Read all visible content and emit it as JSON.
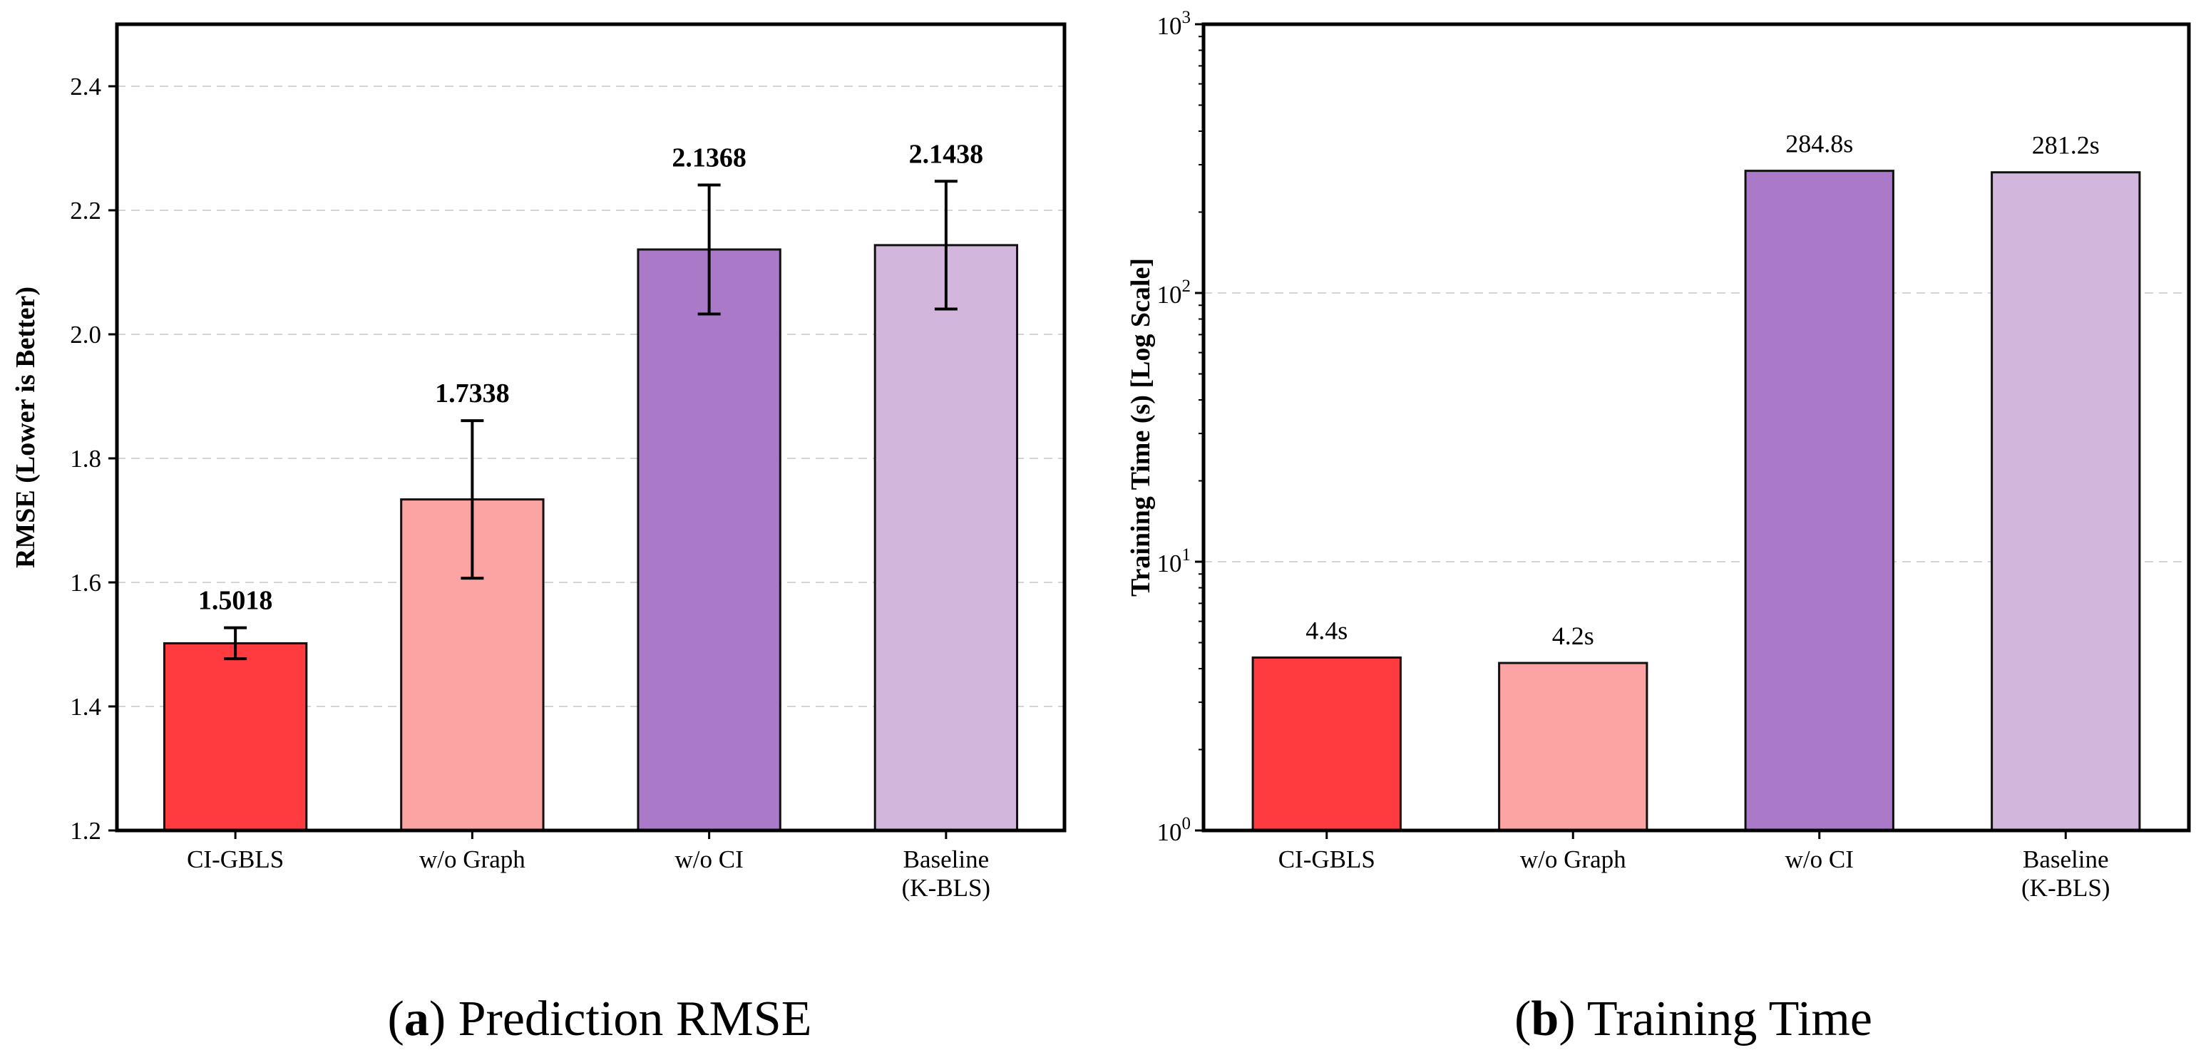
{
  "chart_data": [
    {
      "type": "bar",
      "panel_letter": "a",
      "caption": "Prediction RMSE",
      "title": "",
      "xlabel": "",
      "ylabel": "RMSE (Lower is Better)",
      "categories": [
        [
          "CI-GBLS"
        ],
        [
          "w/o Graph"
        ],
        [
          "w/o CI"
        ],
        [
          "Baseline",
          "(K-BLS)"
        ]
      ],
      "values": [
        1.5018,
        1.7338,
        2.1368,
        2.1438
      ],
      "value_labels": [
        "1.5018",
        "1.7338",
        "2.1368",
        "2.1438"
      ],
      "errors": [
        0.025,
        0.127,
        0.104,
        0.103
      ],
      "colors": [
        "#ff3b3f",
        "#fca3a3",
        "#aa7ac8",
        "#d2b6db"
      ],
      "ylim": [
        1.2,
        2.5
      ],
      "yticks": [
        1.2,
        1.4,
        1.6,
        1.8,
        2.0,
        2.2,
        2.4
      ],
      "ytick_labels": [
        "1.2",
        "1.4",
        "1.6",
        "1.8",
        "2.0",
        "2.2",
        "2.4"
      ],
      "grid": true
    },
    {
      "type": "bar",
      "panel_letter": "b",
      "caption": "Training Time",
      "title": "",
      "xlabel": "",
      "ylabel": "Training Time (s) [Log Scale]",
      "yscale": "log",
      "categories": [
        [
          "CI-GBLS"
        ],
        [
          "w/o Graph"
        ],
        [
          "w/o CI"
        ],
        [
          "Baseline",
          "(K-BLS)"
        ]
      ],
      "values": [
        4.4,
        4.2,
        284.8,
        281.2
      ],
      "value_labels": [
        "4.4s",
        "4.2s",
        "284.8s",
        "281.2s"
      ],
      "colors": [
        "#ff3b3f",
        "#fca3a3",
        "#aa7ac8",
        "#d2b6db"
      ],
      "ylim": [
        1,
        1000
      ],
      "yticks": [
        1,
        10,
        100,
        1000
      ],
      "ytick_base": "10",
      "ytick_exponents": [
        "0",
        "1",
        "2",
        "3"
      ],
      "grid": true
    }
  ]
}
